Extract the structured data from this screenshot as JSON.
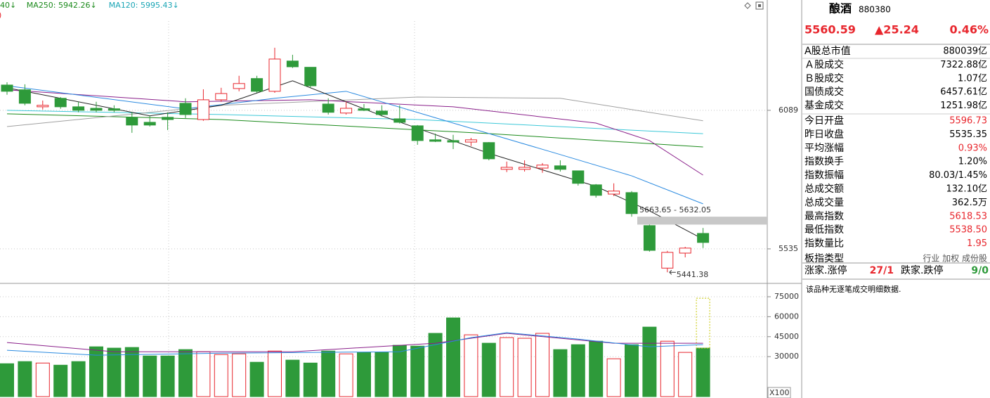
{
  "chart_data": [
    {
      "type": "candlestick",
      "header": [
        {
          "text": "40↓",
          "color": "#1b8a1b"
        },
        {
          "text": "MA250: 5942.26↓",
          "color": "#1b8a1b"
        },
        {
          "text": "MA120: 5995.43↓",
          "color": "#19a5b5"
        },
        {
          "text": ")",
          "color": "#e8262d"
        }
      ],
      "open": [
        6190,
        6171,
        6103,
        6137,
        6103,
        6097,
        6095,
        6061,
        6041,
        6061,
        6117,
        6052,
        6131,
        6176,
        6216,
        6165,
        6286,
        6261,
        6114,
        6078,
        6095,
        6086,
        6055,
        6027,
        5971,
        5968,
        5962,
        5960,
        5853,
        5853,
        5858,
        5867,
        5847,
        5791,
        5754,
        5760,
        5628,
        5458,
        5518,
        5596.73
      ],
      "close": [
        6165,
        6117,
        6109,
        6103,
        6089,
        6089,
        6089,
        6030,
        6030,
        6052,
        6072,
        6131,
        6156,
        6196,
        6165,
        6294,
        6263,
        6187,
        6081,
        6097,
        6089,
        6072,
        6041,
        5968,
        5965,
        5962,
        5971,
        5895,
        5861,
        5861,
        5870,
        5853,
        5797,
        5749,
        5766,
        5676,
        5529,
        5521,
        5538,
        5560.59
      ],
      "low": [
        6151,
        6109,
        6092,
        6095,
        6081,
        6081,
        6081,
        5999,
        6024,
        6010,
        6058,
        6047,
        6123,
        6165,
        6159,
        6159,
        6258,
        6179,
        6072,
        6072,
        6086,
        6064,
        6036,
        5951,
        5962,
        5934,
        5946,
        5889,
        5842,
        5844,
        5839,
        5844,
        5788,
        5740,
        5746,
        5663.65,
        5524,
        5441.38,
        5501,
        5538.5
      ],
      "high": [
        6201,
        6193,
        6128,
        6142,
        6123,
        6123,
        6109,
        6081,
        6067,
        6081,
        6137,
        6173,
        6179,
        6227,
        6227,
        6339,
        6311,
        6261,
        6137,
        6123,
        6114,
        6109,
        6109,
        6030,
        5996,
        5991,
        5979,
        5962,
        5884,
        5889,
        5878,
        5889,
        5847,
        5794,
        5797,
        5766,
        5632.05,
        5527,
        5543,
        5618.53
      ],
      "up_color": "#e8262d",
      "down_color": "#2e9a3a",
      "lines": [
        {
          "color": "#1b8a1b",
          "x": [
            0,
            12,
            27,
            39
          ],
          "values": [
            6075,
            6052,
            5996,
            5942.26
          ]
        },
        {
          "color": "#3cc8d8",
          "x": [
            0,
            12,
            23,
            39
          ],
          "values": [
            6089,
            6072,
            6052,
            5995.43
          ]
        },
        {
          "color": "#a0a0a0",
          "x": [
            0,
            12,
            23,
            31,
            39
          ],
          "values": [
            6024,
            6109,
            6142,
            6137,
            6047
          ]
        },
        {
          "color": "#8a1f8a",
          "x": [
            0,
            10,
            17,
            25,
            33,
            36,
            39
          ],
          "values": [
            6171,
            6123,
            6131,
            6103,
            6038,
            5968,
            5830
          ]
        },
        {
          "color": "#2a8ae0",
          "x": [
            0,
            10,
            15,
            19,
            25,
            31,
            35,
            39
          ],
          "values": [
            6187,
            6095,
            6137,
            6165,
            6038,
            5912,
            5827,
            5715
          ]
        },
        {
          "color": "#222222",
          "x": [
            0,
            8,
            12,
            16,
            21,
            27,
            33,
            36,
            39
          ],
          "values": [
            6179,
            6067,
            6109,
            6207,
            6067,
            5917,
            5785,
            5687,
            5574
          ]
        }
      ],
      "gap_label": "5663.65 - 5632.05",
      "ylim": [
        5397,
        6530
      ],
      "yticks": [
        5535,
        6089
      ],
      "grid": true
    },
    {
      "type": "bar",
      "values": [
        24700,
        26300,
        25200,
        23600,
        26300,
        37400,
        36400,
        36900,
        30500,
        30500,
        35300,
        33700,
        31600,
        32100,
        25800,
        34200,
        27400,
        25200,
        34200,
        32100,
        33200,
        33200,
        38500,
        37900,
        47500,
        59100,
        46400,
        40100,
        44300,
        43800,
        47500,
        35300,
        39000,
        41600,
        28400,
        39000,
        52200,
        41600,
        33200,
        36400
      ],
      "projected_value": 73900,
      "lines": [
        {
          "color": "#8a1f8a",
          "x": [
            0,
            6,
            16,
            24,
            28,
            34,
            39
          ],
          "values": [
            40600,
            33700,
            33700,
            40100,
            47500,
            40100,
            40100
          ]
        },
        {
          "color": "#2a8ae0",
          "x": [
            0,
            5,
            12,
            22,
            26,
            28,
            32,
            36,
            39
          ],
          "values": [
            34800,
            31100,
            32600,
            33700,
            44300,
            48000,
            43200,
            37400,
            39000
          ]
        }
      ],
      "unit_label": "X100",
      "ylim": [
        0,
        84500
      ],
      "yticks": [
        30000,
        45000,
        60000,
        75000
      ],
      "grid": true
    }
  ],
  "panel": {
    "name": "酿酒",
    "code": "880380",
    "price": "5560.59",
    "change": "▲25.24",
    "change_pct": "0.46%",
    "rows": [
      {
        "label": "A股总市值",
        "value": "880039亿",
        "color": "#000000"
      },
      {
        "label": "Ａ股成交",
        "value": "7322.88亿",
        "color": "#000000"
      },
      {
        "label": "Ｂ股成交",
        "value": "1.07亿",
        "color": "#000000"
      },
      {
        "label": "国债成交",
        "value": "6457.61亿",
        "color": "#000000"
      },
      {
        "label": "基金成交",
        "value": "1251.98亿",
        "color": "#000000"
      },
      {
        "label": "今日开盘",
        "value": "5596.73",
        "color": "#e8262d"
      },
      {
        "label": "昨日收盘",
        "value": "5535.35",
        "color": "#000000"
      },
      {
        "label": "平均涨幅",
        "value": "0.93%",
        "color": "#e8262d"
      },
      {
        "label": "指数换手",
        "value": "1.20%",
        "color": "#000000"
      },
      {
        "label": "指数振幅",
        "value": "80.03/1.45%",
        "color": "#000000"
      },
      {
        "label": "总成交额",
        "value": "132.10亿",
        "color": "#000000"
      },
      {
        "label": "总成交量",
        "value": "362.5万",
        "color": "#000000"
      },
      {
        "label": "最高指数",
        "value": "5618.53",
        "color": "#e8262d"
      },
      {
        "label": "最低指数",
        "value": "5538.50",
        "color": "#e8262d"
      },
      {
        "label": "指数量比",
        "value": "1.95",
        "color": "#e8262d"
      },
      {
        "label": "板指类型",
        "value": "行业 加权 成份股",
        "color": "#555555"
      }
    ],
    "breadth": {
      "up_label": "涨家.涨停",
      "up_value": "27/1",
      "down_label": "跌家.跌停",
      "down_value": "9/0"
    },
    "note": "该品种无逐笔成交明细数据."
  }
}
